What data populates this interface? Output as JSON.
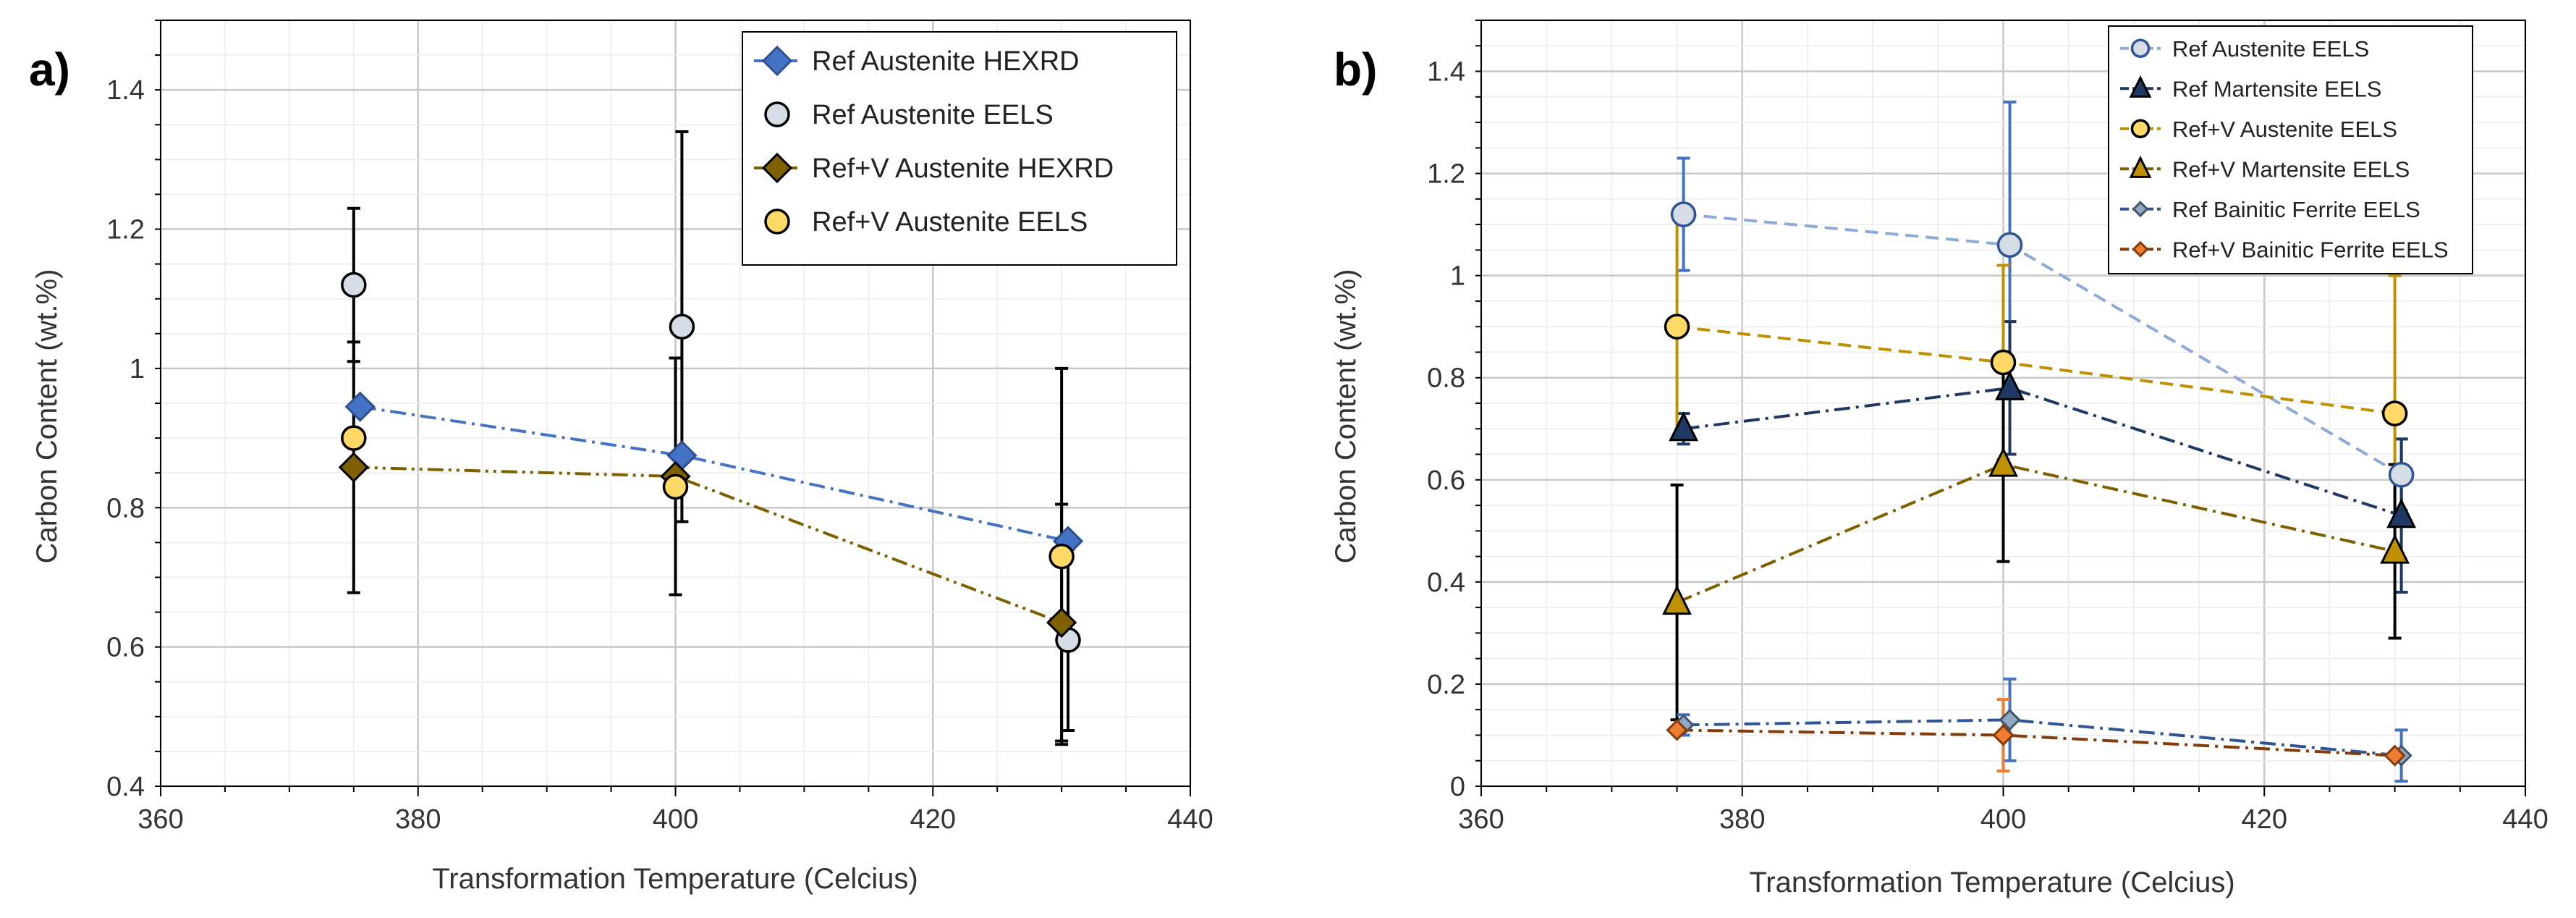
{
  "chart_data": [
    {
      "type": "line",
      "panel_label": "a)",
      "title": "",
      "xlabel": "Transformation Temperature (Celcius)",
      "ylabel": "Carbon Content (wt.%)",
      "xlim": [
        360,
        440
      ],
      "ylim": [
        0.4,
        1.5
      ],
      "x_ticks": [
        "360",
        "380",
        "400",
        "420",
        "440"
      ],
      "y_ticks": [
        "0.4",
        "0.6",
        "0.8",
        "1",
        "1.2",
        "1.4"
      ],
      "grid": true,
      "legend_position": "top-right",
      "series": [
        {
          "name": "Ref Austenite HEXRD",
          "marker": "diamond",
          "color": "#4472C4",
          "edge": "#2F4F8F",
          "line": "dash-dot",
          "line_color": "#4472C4",
          "x": [
            375.5,
            400.5,
            430.5
          ],
          "y": [
            0.945,
            0.875,
            0.752
          ],
          "err": [
            null,
            null,
            null
          ]
        },
        {
          "name": "Ref Austenite EELS",
          "marker": "circle",
          "color": "#D6DCE5",
          "edge": "#000000",
          "line": "none",
          "line_color": "#000000",
          "x": [
            375,
            400.5,
            430.5
          ],
          "y": [
            1.12,
            1.06,
            0.61
          ],
          "err": [
            0.11,
            0.28,
            0.13
          ]
        },
        {
          "name": "Ref+V Austenite HEXRD",
          "marker": "diamond",
          "color": "#7F6000",
          "edge": "#000000",
          "line": "dash-dot-dot",
          "line_color": "#7F6000",
          "x": [
            375,
            400,
            430
          ],
          "y": [
            0.858,
            0.845,
            0.635
          ],
          "err": [
            0.18,
            0.17,
            0.17
          ]
        },
        {
          "name": "Ref+V Austenite EELS",
          "marker": "circle",
          "color": "#FFD966",
          "edge": "#000000",
          "line": "none",
          "line_color": "#000000",
          "x": [
            375,
            400,
            430
          ],
          "y": [
            0.9,
            0.83,
            0.73
          ],
          "err": [
            null,
            null,
            0.27
          ]
        }
      ]
    },
    {
      "type": "line",
      "panel_label": "b)",
      "title": "",
      "xlabel": "Transformation Temperature (Celcius)",
      "ylabel": "Carbon Content (wt.%)",
      "xlim": [
        360,
        440
      ],
      "ylim": [
        0,
        1.5
      ],
      "x_ticks": [
        "360",
        "380",
        "400",
        "420",
        "440"
      ],
      "y_ticks": [
        "0",
        "0.2",
        "0.4",
        "0.6",
        "0.8",
        "1",
        "1.2",
        "1.4"
      ],
      "grid": true,
      "legend_position": "top-right",
      "series": [
        {
          "name": "Ref Austenite EELS",
          "marker": "circle",
          "color": "#D6DCE5",
          "edge": "#2F5597",
          "line": "dashed",
          "line_color": "#8EAADB",
          "err_color": "#4472C4",
          "x": [
            375.5,
            400.5,
            430.5
          ],
          "y": [
            1.12,
            1.06,
            0.61
          ],
          "err": [
            0.11,
            0.28,
            0.07
          ]
        },
        {
          "name": "Ref Martensite EELS",
          "marker": "triangle",
          "color": "#1F3864",
          "edge": "#000000",
          "line": "dash-dot",
          "line_color": "#1F3864",
          "err_color": "#1F3864",
          "x": [
            375.5,
            400.5,
            430.5
          ],
          "y": [
            0.7,
            0.78,
            0.53
          ],
          "err": [
            0.03,
            0.13,
            0.15
          ]
        },
        {
          "name": "Ref+V Austenite EELS",
          "marker": "circle",
          "color": "#FFD966",
          "edge": "#000000",
          "line": "dashed",
          "line_color": "#BF9000",
          "err_color": "#BF9000",
          "x": [
            375,
            400,
            430
          ],
          "y": [
            0.9,
            0.83,
            0.73
          ],
          "err": [
            0.22,
            0.19,
            0.27
          ]
        },
        {
          "name": "Ref+V Martensite EELS",
          "marker": "triangle",
          "color": "#BF9000",
          "edge": "#000000",
          "line": "dash-dot",
          "line_color": "#7F6000",
          "err_color": "#000000",
          "x": [
            375,
            400,
            430
          ],
          "y": [
            0.36,
            0.63,
            0.46
          ],
          "err": [
            0.23,
            0.19,
            0.17
          ]
        },
        {
          "name": "Ref Bainitic Ferrite EELS",
          "marker": "diamond-small",
          "color": "#8EA9C1",
          "edge": "#44546A",
          "line": "dash-dot",
          "line_color": "#2F5597",
          "err_color": "#4472C4",
          "x": [
            375.5,
            400.5,
            430.5
          ],
          "y": [
            0.12,
            0.13,
            0.06
          ],
          "err": [
            0.02,
            0.08,
            0.05
          ]
        },
        {
          "name": "Ref+V Bainitic Ferrite EELS",
          "marker": "diamond-small",
          "color": "#ED7D31",
          "edge": "#843C0C",
          "line": "dash-dot",
          "line_color": "#843C0C",
          "err_color": "#ED7D31",
          "x": [
            375,
            400,
            430
          ],
          "y": [
            0.11,
            0.1,
            0.06
          ],
          "err": [
            null,
            0.07,
            null
          ]
        }
      ]
    }
  ]
}
